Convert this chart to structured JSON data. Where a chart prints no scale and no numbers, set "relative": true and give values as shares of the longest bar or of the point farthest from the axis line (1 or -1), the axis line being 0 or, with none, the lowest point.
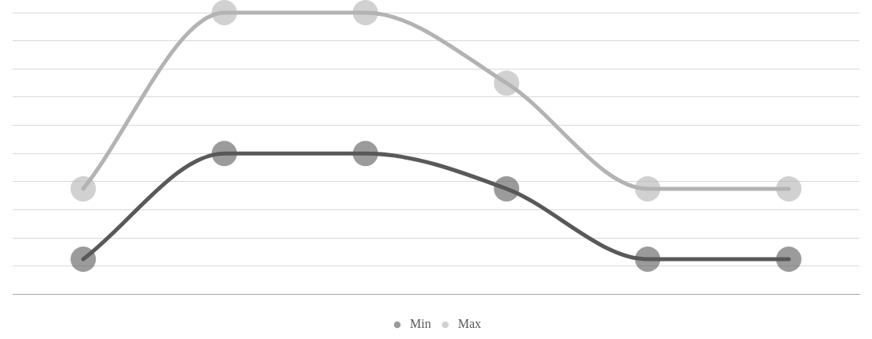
{
  "chart_data": {
    "type": "line",
    "relative": true,
    "categories": [
      null,
      null,
      null,
      null,
      null,
      null
    ],
    "series": [
      {
        "name": "Min",
        "color": "#595959",
        "values": [
          0.125,
          0.5,
          0.5,
          0.375,
          0.125,
          0.125
        ]
      },
      {
        "name": "Max",
        "color": "#b3b3b3",
        "values": [
          0.375,
          1,
          1,
          0.75,
          0.375,
          0.375
        ]
      }
    ],
    "grid": "y",
    "legend": "bottom",
    "marker": "circle",
    "line_style": "solid"
  }
}
